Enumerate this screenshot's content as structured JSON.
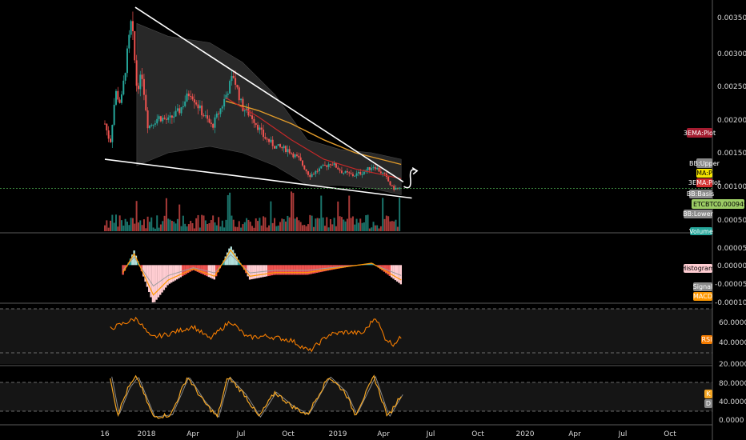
{
  "colors": {
    "background": "#000000",
    "up": "#26a69a",
    "down": "#ef5350",
    "bb_band": "#303030",
    "ema1": "#c62828",
    "ema2": "#e09a2a",
    "macd": "#ff9800",
    "signal": "#9e9e9e",
    "hist_up": "#b2dfdb",
    "hist_up_strong": "#26a69a",
    "hist_down": "#ef5350",
    "hist_down_light": "#ffcdd2",
    "rsi": "#f57c00",
    "stoch_k": "#f5a623",
    "stoch_d": "#888888",
    "trendline": "#ffffff",
    "last_price_line": "#4caf50"
  },
  "x_axis": {
    "ticks": [
      "16",
      "2018",
      "Apr",
      "Jul",
      "Oct",
      "2019",
      "Apr",
      "Jul",
      "Oct",
      "2020",
      "Apr",
      "Jul",
      "Oct"
    ]
  },
  "price_axis": {
    "ticks": [
      "0.003500",
      "0.003000",
      "0.002500",
      "0.002000",
      "0.001500",
      "0.001000",
      "0.000500"
    ]
  },
  "macd_axis": {
    "ticks": [
      "0.000050",
      "0.000000",
      "-0.000050",
      "-0.000100"
    ]
  },
  "rsi_axis": {
    "ticks": [
      "60.0000",
      "40.0000",
      "20.0000"
    ]
  },
  "stoch_axis": {
    "ticks": [
      "80.0000",
      "40.0000",
      "0.0000"
    ]
  },
  "tags": {
    "ema1": "3EMA:Plot",
    "bb_upper": "BB:Upper",
    "ema2": "3EMA:Plot",
    "ema3": "3EMA:Plot",
    "bb_basis": "BB:Basis",
    "symbol": "ETCBTC",
    "last_price": "0.000949",
    "bb_lower": "BB:Lower",
    "volume": "Volume",
    "histogram": "Histogram",
    "signal": "Signal",
    "macd": "MACD",
    "rsi": "RSI",
    "stoch_k": "K",
    "stoch_d": "D"
  },
  "chart_data": {
    "type": "candlestick",
    "symbol": "ETCBTC",
    "x_range": [
      "2017-11-16",
      "2020-10-31"
    ],
    "price_range": [
      0.0003,
      0.0038
    ],
    "last_price": 0.000949,
    "price_path": [
      [
        "2017-11-16",
        0.00195
      ],
      [
        "2017-11-26",
        0.00165
      ],
      [
        "2017-12-06",
        0.00245
      ],
      [
        "2017-12-16",
        0.00225
      ],
      [
        "2017-12-26",
        0.0029
      ],
      [
        "2018-01-05",
        0.00355
      ],
      [
        "2018-01-15",
        0.0025
      ],
      [
        "2018-01-25",
        0.0027
      ],
      [
        "2018-02-05",
        0.0019
      ],
      [
        "2018-02-25",
        0.00205
      ],
      [
        "2018-03-15",
        0.002
      ],
      [
        "2018-04-05",
        0.00215
      ],
      [
        "2018-04-25",
        0.00245
      ],
      [
        "2018-05-15",
        0.00215
      ],
      [
        "2018-06-05",
        0.0019
      ],
      [
        "2018-06-25",
        0.00225
      ],
      [
        "2018-07-15",
        0.0027
      ],
      [
        "2018-08-01",
        0.0022
      ],
      [
        "2018-08-20",
        0.00205
      ],
      [
        "2018-09-10",
        0.00175
      ],
      [
        "2018-10-01",
        0.0016
      ],
      [
        "2018-10-25",
        0.00155
      ],
      [
        "2018-11-15",
        0.0014
      ],
      [
        "2018-12-05",
        0.00115
      ],
      [
        "2018-12-25",
        0.00125
      ],
      [
        "2019-01-15",
        0.00135
      ],
      [
        "2019-02-05",
        0.0012
      ],
      [
        "2019-02-25",
        0.00115
      ],
      [
        "2019-03-15",
        0.0012
      ],
      [
        "2019-04-05",
        0.0013
      ],
      [
        "2019-04-25",
        0.00115
      ],
      [
        "2019-05-10",
        0.00095
      ],
      [
        "2019-05-26",
        0.000949
      ]
    ],
    "bb_upper": [
      [
        "2018-01-15",
        0.0035
      ],
      [
        "2018-03-15",
        0.0033
      ],
      [
        "2018-06-01",
        0.0032
      ],
      [
        "2018-08-01",
        0.0029
      ],
      [
        "2018-10-01",
        0.0024
      ],
      [
        "2018-12-01",
        0.0017
      ],
      [
        "2019-02-01",
        0.00155
      ],
      [
        "2019-04-01",
        0.0015
      ],
      [
        "2019-05-26",
        0.0014
      ]
    ],
    "bb_lower": [
      [
        "2018-01-15",
        0.0013
      ],
      [
        "2018-03-15",
        0.0015
      ],
      [
        "2018-06-01",
        0.0016
      ],
      [
        "2018-08-01",
        0.0015
      ],
      [
        "2018-10-01",
        0.0013
      ],
      [
        "2018-12-01",
        0.001
      ],
      [
        "2019-02-01",
        0.001
      ],
      [
        "2019-04-01",
        0.00095
      ],
      [
        "2019-05-26",
        0.00085
      ]
    ],
    "ema_red": [
      [
        "2018-07-01",
        0.00235
      ],
      [
        "2018-09-01",
        0.00205
      ],
      [
        "2018-11-01",
        0.0017
      ],
      [
        "2019-01-01",
        0.0014
      ],
      [
        "2019-03-01",
        0.00125
      ],
      [
        "2019-05-26",
        0.0011
      ]
    ],
    "ema_orange": [
      [
        "2018-07-01",
        0.0023
      ],
      [
        "2018-09-01",
        0.00215
      ],
      [
        "2018-11-01",
        0.00195
      ],
      [
        "2019-01-01",
        0.0017
      ],
      [
        "2019-03-01",
        0.0015
      ],
      [
        "2019-05-26",
        0.00132
      ]
    ],
    "trendlines": [
      {
        "from": [
          "2018-01-12",
          0.00375
        ],
        "to": [
          "2019-05-30",
          0.00105
        ]
      },
      {
        "from": [
          "2017-11-16",
          0.0014
        ],
        "to": [
          "2019-06-15",
          0.0008
        ]
      }
    ],
    "projection_arrow": [
      [
        "2019-05-31",
        0.00098
      ],
      [
        "2019-06-25",
        0.00122
      ]
    ],
    "macd_range": [
      -0.0001,
      8e-05
    ],
    "macd": [
      [
        "2017-12-20",
        -2e-05
      ],
      [
        "2018-01-10",
        3e-05
      ],
      [
        "2018-02-15",
        -8e-05
      ],
      [
        "2018-03-15",
        -4e-05
      ],
      [
        "2018-05-01",
        -1e-05
      ],
      [
        "2018-06-10",
        -3e-05
      ],
      [
        "2018-07-10",
        4e-05
      ],
      [
        "2018-08-15",
        -3e-05
      ],
      [
        "2018-10-01",
        -2e-05
      ],
      [
        "2018-12-01",
        -2e-05
      ],
      [
        "2019-01-15",
        -1e-05
      ],
      [
        "2019-04-01",
        5e-06
      ],
      [
        "2019-05-26",
        -4e-05
      ]
    ],
    "rsi_range": [
      0,
      100
    ],
    "rsi_levels": [
      70,
      30
    ],
    "rsi": [
      [
        "2017-11-26",
        55
      ],
      [
        "2017-12-20",
        62
      ],
      [
        "2018-01-15",
        70
      ],
      [
        "2018-02-10",
        42
      ],
      [
        "2018-03-10",
        46
      ],
      [
        "2018-05-01",
        58
      ],
      [
        "2018-06-01",
        40
      ],
      [
        "2018-07-10",
        66
      ],
      [
        "2018-08-10",
        42
      ],
      [
        "2018-09-15",
        44
      ],
      [
        "2018-11-01",
        38
      ],
      [
        "2018-12-05",
        22
      ],
      [
        "2019-01-10",
        46
      ],
      [
        "2019-02-10",
        50
      ],
      [
        "2019-03-15",
        48
      ],
      [
        "2019-04-08",
        72
      ],
      [
        "2019-04-25",
        42
      ],
      [
        "2019-05-10",
        32
      ],
      [
        "2019-05-26",
        42
      ]
    ],
    "stoch_range": [
      0,
      100
    ],
    "stoch_levels": [
      80,
      20
    ],
    "stoch_k": [
      [
        "2017-11-26",
        95
      ],
      [
        "2017-12-10",
        10
      ],
      [
        "2017-12-30",
        70
      ],
      [
        "2018-01-15",
        95
      ],
      [
        "2018-02-15",
        5
      ],
      [
        "2018-03-20",
        10
      ],
      [
        "2018-04-20",
        95
      ],
      [
        "2018-05-20",
        40
      ],
      [
        "2018-06-15",
        5
      ],
      [
        "2018-07-05",
        95
      ],
      [
        "2018-08-05",
        55
      ],
      [
        "2018-09-01",
        5
      ],
      [
        "2018-10-01",
        60
      ],
      [
        "2018-11-01",
        30
      ],
      [
        "2018-12-01",
        10
      ],
      [
        "2019-01-10",
        95
      ],
      [
        "2019-02-10",
        60
      ],
      [
        "2019-03-01",
        10
      ],
      [
        "2019-04-05",
        95
      ],
      [
        "2019-05-01",
        5
      ],
      [
        "2019-05-26",
        55
      ]
    ]
  }
}
